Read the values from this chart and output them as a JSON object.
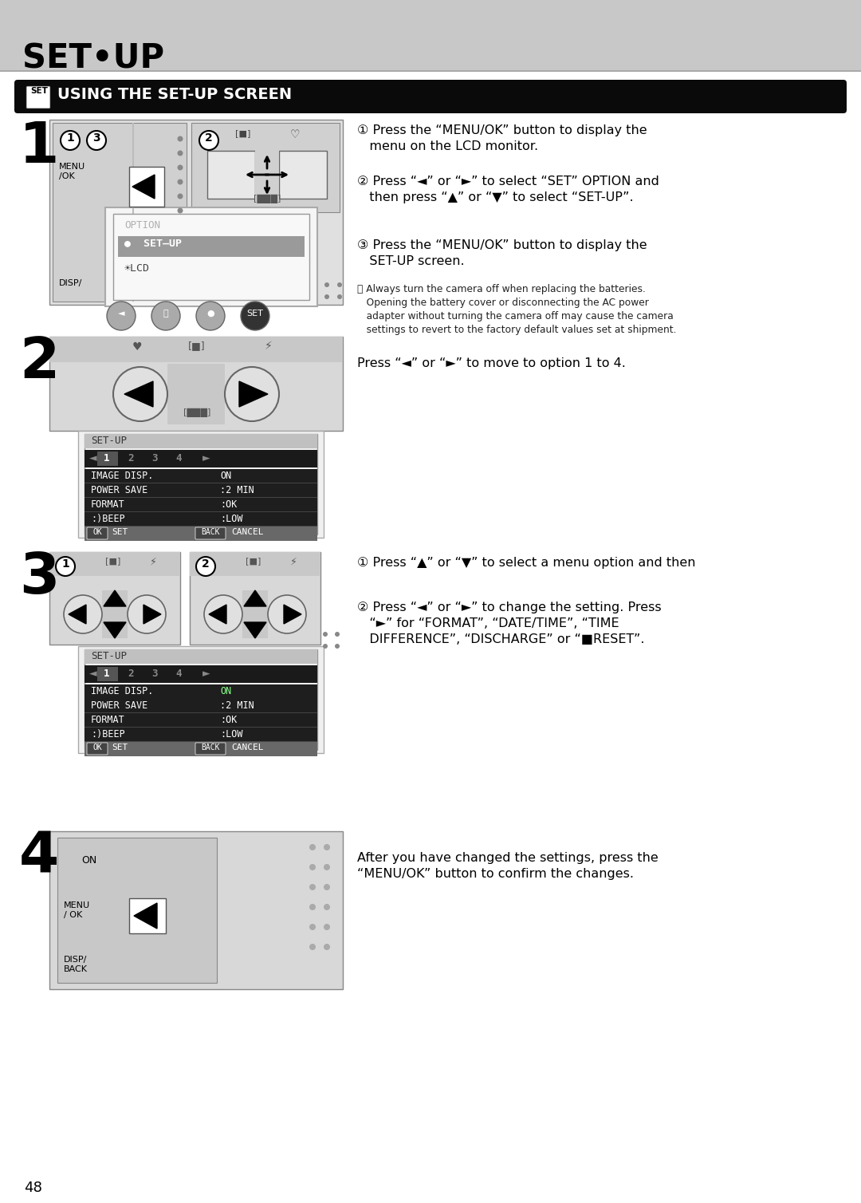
{
  "page_bg": "#ffffff",
  "header_bg": "#c8c8c8",
  "header_text": "SET•UP",
  "bar_bg": "#0a0a0a",
  "bar_text": "USING THE SET-UP SCREEN",
  "step1_instr1": "① Press the “MENU/OK” button to display the\n   menu on the LCD monitor.",
  "step1_instr2": "② Press “◄” or “►” to select “SET” OPTION and\n   then press “▲” or “▼” to select “SET-UP”.",
  "step1_instr3": "③ Press the “MENU/OK” button to display the\n   SET-UP screen.",
  "step1_note": "⓪ Always turn the camera off when replacing the batteries.\n   Opening the battery cover or disconnecting the AC power\n   adapter without turning the camera off may cause the camera\n   settings to revert to the factory default values set at shipment.",
  "step2_instr": "Press “◄” or “►” to move to option 1 to 4.",
  "step3_instr1": "① Press “▲” or “▼” to select a menu option and then",
  "step3_instr2": "② Press “◄” or “►” to change the setting. Press\n   “►” for “FORMAT”, “DATE/TIME”, “TIME\n   DIFFERENCE”, “DISCHARGE” or “■RESET”.",
  "step4_instr": "After you have changed the settings, press the\n“MENU/OK” button to confirm the changes.",
  "page_number": "48",
  "lcd_menu_items": [
    "IMAGE DISP.  ON",
    "POWER SAVE  :2 MIN",
    "FORMAT      :OK",
    ":)BEEP       :LOW"
  ],
  "lcd_menu_keys": [
    "IMAGE DISP.",
    "POWER SAVE",
    "FORMAT",
    ":)BEEP"
  ],
  "lcd_menu_vals": [
    "ON",
    ":2 MIN",
    ":OK",
    ":LOW"
  ]
}
